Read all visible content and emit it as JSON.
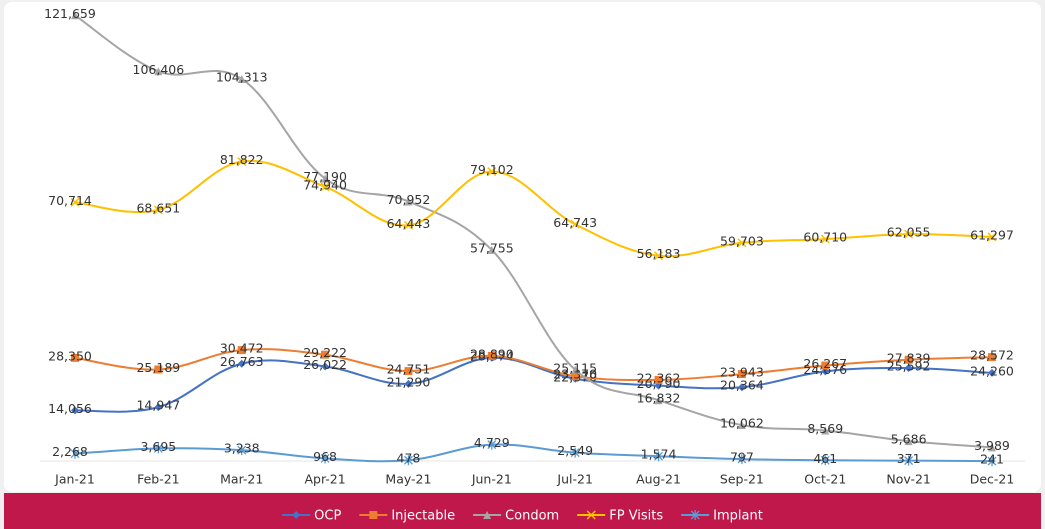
{
  "chart_data": {
    "type": "line",
    "categories": [
      "Jan-21",
      "Feb-21",
      "Mar-21",
      "Apr-21",
      "May-21",
      "Jun-21",
      "Jul-21",
      "Aug-21",
      "Sep-21",
      "Oct-21",
      "Nov-21",
      "Dec-21"
    ],
    "ylim": [
      0,
      125000
    ],
    "legend": "bottom",
    "series": [
      {
        "name": "OCP",
        "color": "#4472c4",
        "marker": "diamond",
        "values": [
          14056,
          14947,
          26763,
          26022,
          21290,
          28374,
          22670,
          20790,
          20364,
          24676,
          25592,
          24260
        ],
        "value_labels": [
          "14,056",
          "14,947",
          "26,763",
          "26,022",
          "21,290",
          "28,374",
          "22,670",
          "20,790",
          "20,364",
          "24,676",
          "25,592",
          "24,260"
        ]
      },
      {
        "name": "Injectable",
        "color": "#ed7d31",
        "marker": "square",
        "values": [
          28350,
          25189,
          30472,
          29222,
          24751,
          28890,
          23370,
          22362,
          23943,
          26267,
          27839,
          28572
        ],
        "value_labels": [
          "28,350",
          "25,189",
          "30,472",
          "29,222",
          "24,751",
          "28,890",
          "23,370",
          "22,362",
          "23,943",
          "26,267",
          "27,839",
          "28,572"
        ]
      },
      {
        "name": "Condom",
        "color": "#a5a5a5",
        "marker": "triangle",
        "values": [
          121659,
          106406,
          104313,
          77190,
          70952,
          57755,
          25115,
          16832,
          10062,
          8569,
          5686,
          3989
        ],
        "value_labels": [
          "121,659",
          "106,406",
          "104,313",
          "77,190",
          "70,952",
          "57,755",
          "25,115",
          "16,832",
          "10,062",
          "8,569",
          "5,686",
          "3,989"
        ]
      },
      {
        "name": "FP Visits",
        "color": "#ffc000",
        "marker": "x",
        "values": [
          70714,
          68651,
          81822,
          74940,
          64443,
          79102,
          64743,
          56183,
          59703,
          60710,
          62055,
          61297
        ],
        "value_labels": [
          "70,714",
          "68,651",
          "81,822",
          "74,940",
          "64,443",
          "79,102",
          "64,743",
          "56,183",
          "59,703",
          "60,710",
          "62,055",
          "61,297"
        ]
      },
      {
        "name": "Implant",
        "color": "#5b9bd5",
        "marker": "star",
        "values": [
          2268,
          3695,
          3238,
          968,
          478,
          4729,
          2549,
          1574,
          797,
          461,
          371,
          241
        ],
        "value_labels": [
          "2,268",
          "3,695",
          "3,238",
          "968",
          "478",
          "4,729",
          "2,549",
          "1,574",
          "797",
          "461",
          "371",
          "241"
        ]
      }
    ]
  }
}
